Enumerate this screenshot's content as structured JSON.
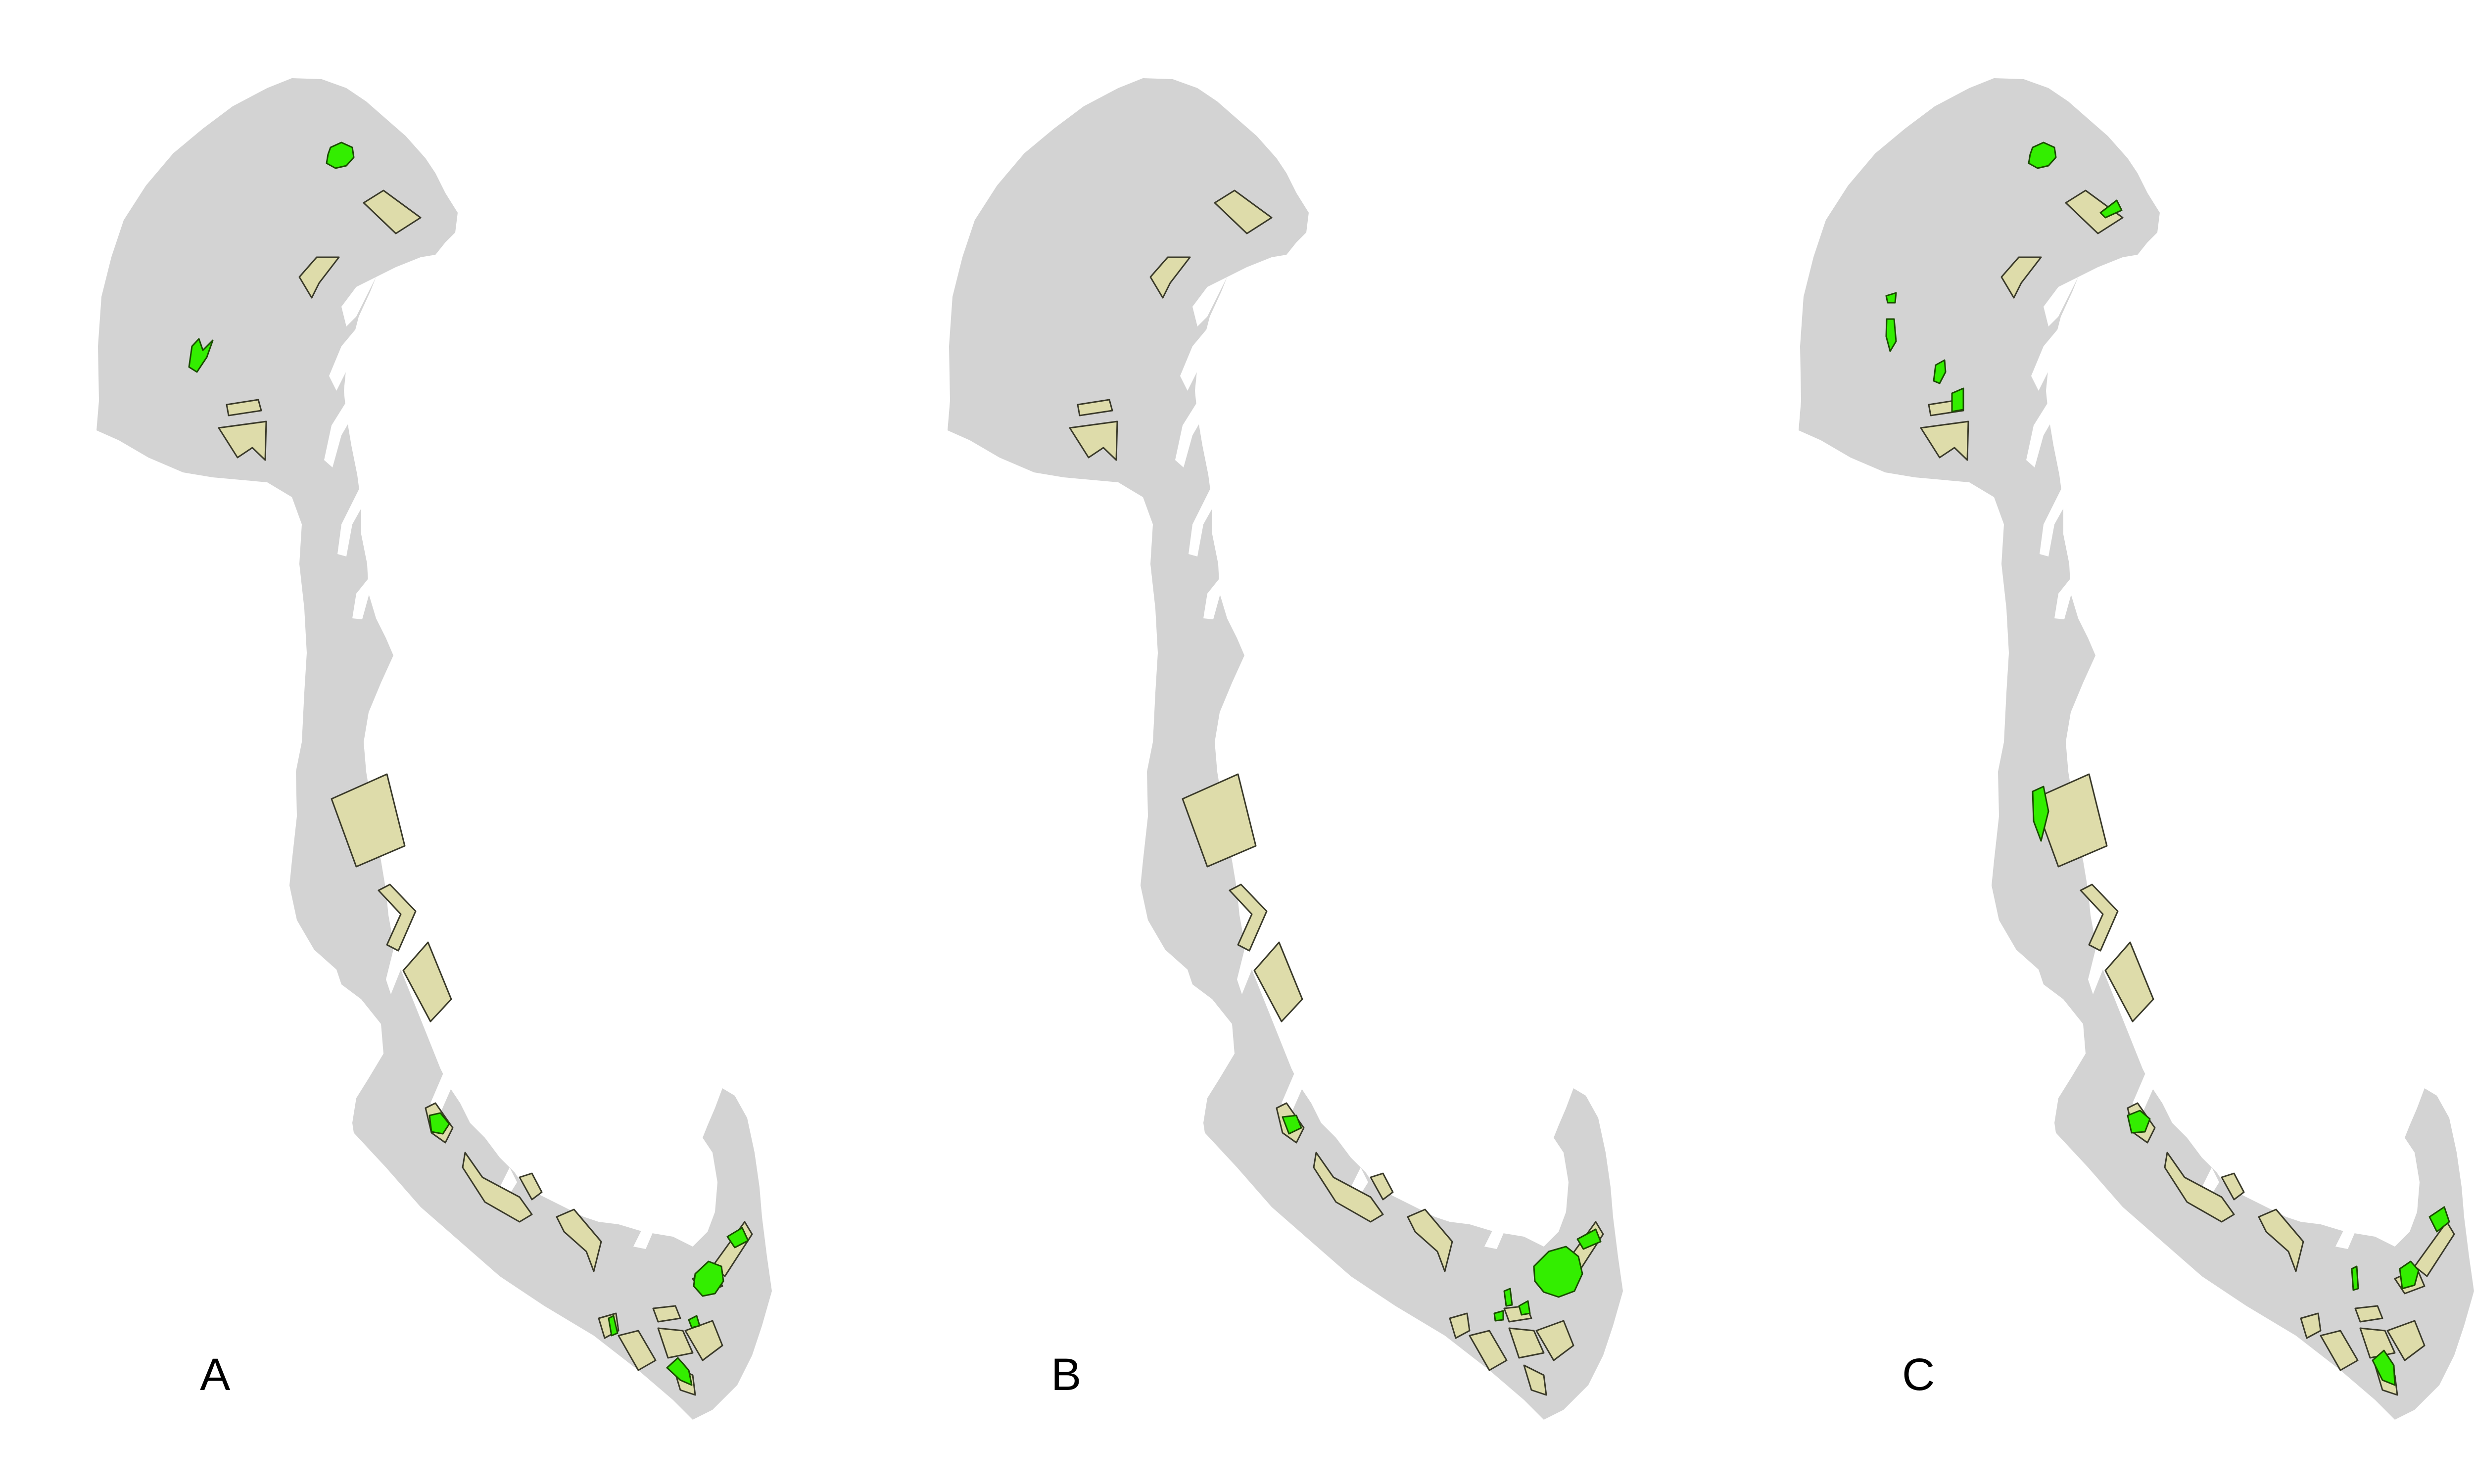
{
  "figure": {
    "panels": [
      {
        "id": "A",
        "label": "A",
        "selected_count": 9
      },
      {
        "id": "B",
        "label": "B",
        "selected_count": 6
      },
      {
        "id": "C",
        "label": "C",
        "selected_count": 12
      }
    ]
  },
  "colors": {
    "background": "#ffffff",
    "sea_area": "#d3d3d3",
    "planning_zone_fill": "#dedcaa",
    "selected_area_fill": "#33ee00",
    "outline": "#3a3a2a",
    "label_text": "#000000"
  },
  "legend": null
}
